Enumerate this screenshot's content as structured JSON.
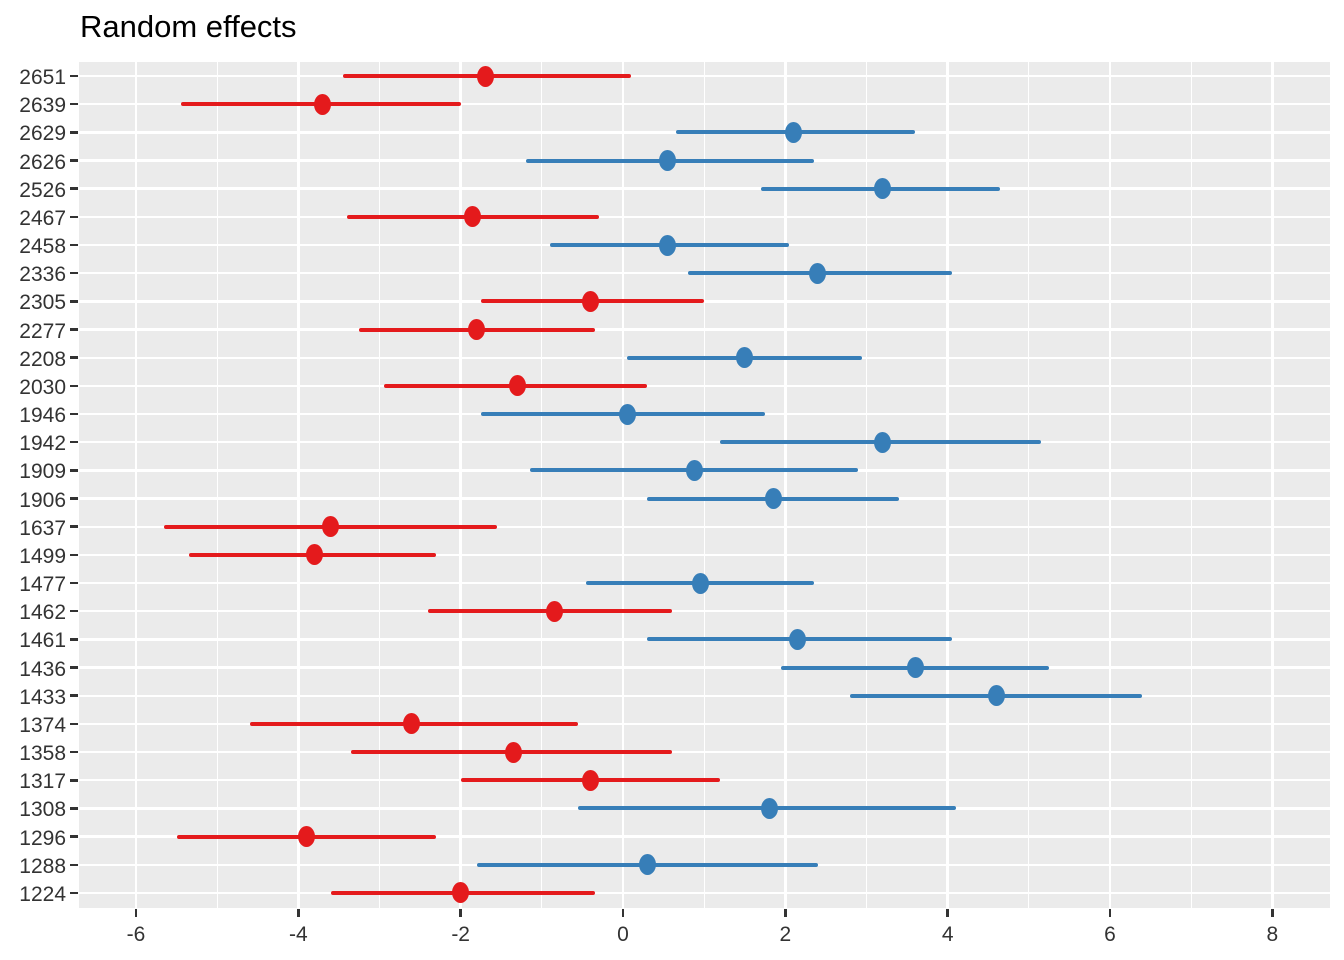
{
  "chart_data": {
    "type": "scatter",
    "subtype": "horizontal-pointrange",
    "title": "Random effects",
    "xlabel": "",
    "ylabel": "",
    "xlim": [
      -6.7,
      8.7
    ],
    "x_ticks": [
      -6,
      -4,
      -2,
      0,
      2,
      4,
      6,
      8
    ],
    "x_minor_ticks": [
      -5,
      -3,
      -1,
      1,
      3,
      5,
      7
    ],
    "grid": "white major/minor vertical lines and one white horizontal line per row on grey panel",
    "legend": "none",
    "colors": {
      "red": "#E41A1C",
      "blue": "#377EB8",
      "panel_bg": "#EBEBEB",
      "grid": "#FFFFFF",
      "axis_text": "#333333",
      "tick_mark": "#333333"
    },
    "rows": [
      {
        "label": "2651",
        "group": "red",
        "estimate": -1.7,
        "lower": -3.45,
        "upper": 0.1
      },
      {
        "label": "2639",
        "group": "red",
        "estimate": -3.7,
        "lower": -5.45,
        "upper": -2.0
      },
      {
        "label": "2629",
        "group": "blue",
        "estimate": 2.1,
        "lower": 0.65,
        "upper": 3.6
      },
      {
        "label": "2626",
        "group": "blue",
        "estimate": 0.55,
        "lower": -1.2,
        "upper": 2.35
      },
      {
        "label": "2526",
        "group": "blue",
        "estimate": 3.2,
        "lower": 1.7,
        "upper": 4.65
      },
      {
        "label": "2467",
        "group": "red",
        "estimate": -1.85,
        "lower": -3.4,
        "upper": -0.3
      },
      {
        "label": "2458",
        "group": "blue",
        "estimate": 0.55,
        "lower": -0.9,
        "upper": 2.05
      },
      {
        "label": "2336",
        "group": "blue",
        "estimate": 2.4,
        "lower": 0.8,
        "upper": 4.05
      },
      {
        "label": "2305",
        "group": "red",
        "estimate": -0.4,
        "lower": -1.75,
        "upper": 1.0
      },
      {
        "label": "2277",
        "group": "red",
        "estimate": -1.8,
        "lower": -3.25,
        "upper": -0.35
      },
      {
        "label": "2208",
        "group": "blue",
        "estimate": 1.5,
        "lower": 0.05,
        "upper": 2.95
      },
      {
        "label": "2030",
        "group": "red",
        "estimate": -1.3,
        "lower": -2.95,
        "upper": 0.3
      },
      {
        "label": "1946",
        "group": "blue",
        "estimate": 0.05,
        "lower": -1.75,
        "upper": 1.75
      },
      {
        "label": "1942",
        "group": "blue",
        "estimate": 3.2,
        "lower": 1.2,
        "upper": 5.15
      },
      {
        "label": "1909",
        "group": "blue",
        "estimate": 0.88,
        "lower": -1.15,
        "upper": 2.9
      },
      {
        "label": "1906",
        "group": "blue",
        "estimate": 1.85,
        "lower": 0.3,
        "upper": 3.4
      },
      {
        "label": "1637",
        "group": "red",
        "estimate": -3.6,
        "lower": -5.65,
        "upper": -1.55
      },
      {
        "label": "1499",
        "group": "red",
        "estimate": -3.8,
        "lower": -5.35,
        "upper": -2.3
      },
      {
        "label": "1477",
        "group": "blue",
        "estimate": 0.95,
        "lower": -0.45,
        "upper": 2.35
      },
      {
        "label": "1462",
        "group": "red",
        "estimate": -0.85,
        "lower": -2.4,
        "upper": 0.6
      },
      {
        "label": "1461",
        "group": "blue",
        "estimate": 2.15,
        "lower": 0.3,
        "upper": 4.05
      },
      {
        "label": "1436",
        "group": "blue",
        "estimate": 3.6,
        "lower": 1.95,
        "upper": 5.25
      },
      {
        "label": "1433",
        "group": "blue",
        "estimate": 4.6,
        "lower": 2.8,
        "upper": 6.4
      },
      {
        "label": "1374",
        "group": "red",
        "estimate": -2.6,
        "lower": -4.6,
        "upper": -0.55
      },
      {
        "label": "1358",
        "group": "red",
        "estimate": -1.35,
        "lower": -3.35,
        "upper": 0.6
      },
      {
        "label": "1317",
        "group": "red",
        "estimate": -0.4,
        "lower": -2.0,
        "upper": 1.2
      },
      {
        "label": "1308",
        "group": "blue",
        "estimate": 1.8,
        "lower": -0.55,
        "upper": 4.1
      },
      {
        "label": "1296",
        "group": "red",
        "estimate": -3.9,
        "lower": -5.5,
        "upper": -2.3
      },
      {
        "label": "1288",
        "group": "blue",
        "estimate": 0.3,
        "lower": -1.8,
        "upper": 2.4
      },
      {
        "label": "1224",
        "group": "red",
        "estimate": -2.0,
        "lower": -3.6,
        "upper": -0.35
      }
    ]
  }
}
